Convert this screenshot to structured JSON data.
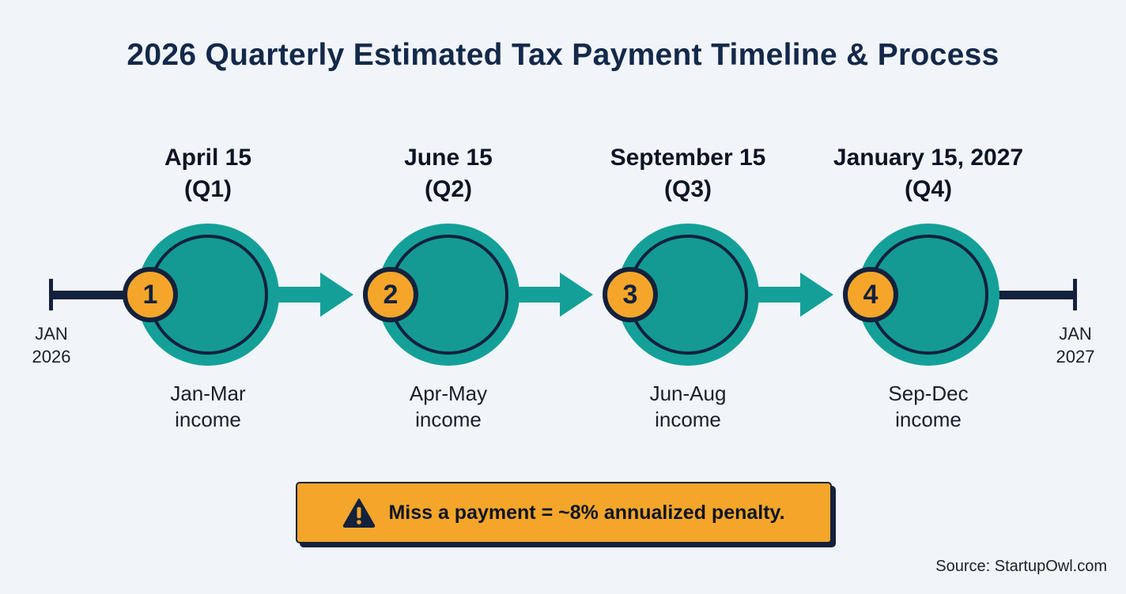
{
  "title": "2026 Quarterly Estimated Tax Payment Timeline & Process",
  "timeline": {
    "start": {
      "month": "JAN",
      "year": "2026"
    },
    "end": {
      "month": "JAN",
      "year": "2027"
    },
    "stages": [
      {
        "number": "1",
        "date": "April 15",
        "quarter": "(Q1)",
        "period": "Jan-Mar",
        "period_sub": "income"
      },
      {
        "number": "2",
        "date": "June 15",
        "quarter": "(Q2)",
        "period": "Apr-May",
        "period_sub": "income"
      },
      {
        "number": "3",
        "date": "September 15",
        "quarter": "(Q3)",
        "period": "Jun-Aug",
        "period_sub": "income"
      },
      {
        "number": "4",
        "date": "January 15, 2027",
        "quarter": "(Q4)",
        "period": "Sep-Dec",
        "period_sub": "income"
      }
    ]
  },
  "warning": {
    "icon": "warning-triangle-icon",
    "text": "Miss a payment = ~8% annualized penalty."
  },
  "source": "Source: StartupOwl.com",
  "colors": {
    "teal": "#14a098",
    "navy": "#14213d",
    "amber": "#f4a62a",
    "background": "#f1f5f9"
  }
}
